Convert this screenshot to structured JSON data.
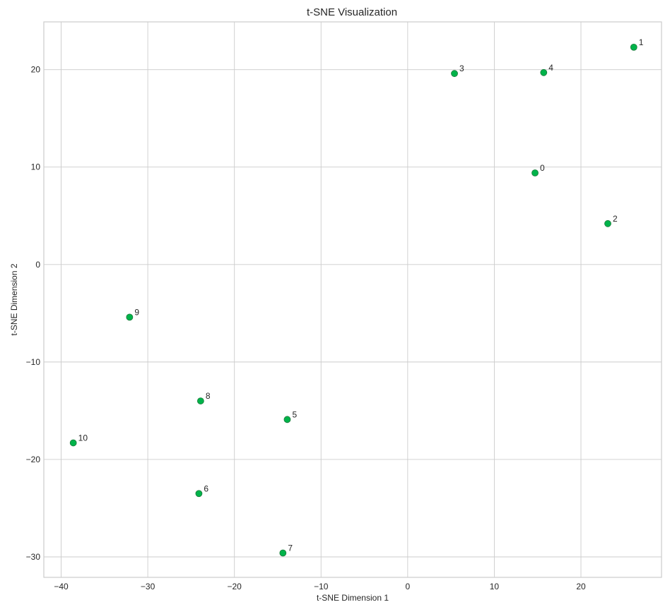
{
  "chart_data": {
    "type": "scatter",
    "title": "t-SNE Visualization",
    "xlabel": "t-SNE Dimension 1",
    "ylabel": "t-SNE Dimension 2",
    "xlim": [
      -42.0,
      29.3
    ],
    "ylim": [
      -32.1,
      24.9
    ],
    "xticks": [
      -40,
      -30,
      -20,
      -10,
      0,
      10,
      20
    ],
    "yticks": [
      -30,
      -20,
      -10,
      0,
      10,
      20
    ],
    "xtick_labels": [
      "−40",
      "−30",
      "−20",
      "−10",
      "0",
      "10",
      "20"
    ],
    "ytick_labels": [
      "−30",
      "−20",
      "−10",
      "0",
      "10",
      "20"
    ],
    "grid": true,
    "legend": false,
    "marker_color": "#00b34a",
    "marker_edge_color": "#1d7a3c",
    "points": [
      {
        "label": "0",
        "x": 14.7,
        "y": 9.4
      },
      {
        "label": "1",
        "x": 26.1,
        "y": 22.3
      },
      {
        "label": "2",
        "x": 23.1,
        "y": 4.2
      },
      {
        "label": "3",
        "x": 5.4,
        "y": 19.6
      },
      {
        "label": "4",
        "x": 15.7,
        "y": 19.7
      },
      {
        "label": "5",
        "x": -13.9,
        "y": -15.9
      },
      {
        "label": "6",
        "x": -24.1,
        "y": -23.5
      },
      {
        "label": "7",
        "x": -14.4,
        "y": -29.6
      },
      {
        "label": "8",
        "x": -23.9,
        "y": -14.0
      },
      {
        "label": "9",
        "x": -32.1,
        "y": -5.4
      },
      {
        "label": "10",
        "x": -38.6,
        "y": -18.3
      }
    ]
  }
}
